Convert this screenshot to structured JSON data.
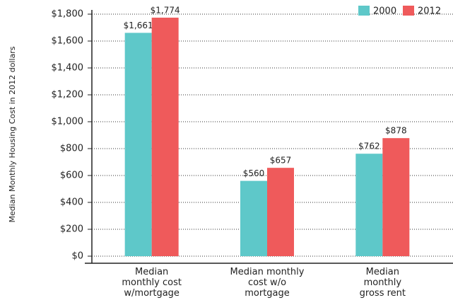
{
  "chart_data": {
    "type": "bar",
    "y_label": "Median Monthly Housing Cost in 2012 dollars",
    "categories": [
      "Median\nmonthly cost\nw/mortgage",
      "Median monthly\ncost w/o\nmortgage",
      "Median\nmonthly\ngross rent"
    ],
    "series": [
      {
        "name": "2000",
        "color": "#5ec8c9",
        "values": [
          1661,
          560,
          762
        ],
        "value_labels": [
          "$1,661",
          "$560",
          "$762"
        ]
      },
      {
        "name": "2012",
        "color": "#ef5a5b",
        "values": [
          1774,
          657,
          878
        ],
        "value_labels": [
          "$1,774",
          "$657",
          "$878"
        ]
      }
    ],
    "ylim": [
      0,
      1800
    ],
    "yticks": [
      {
        "value": 0,
        "label": "$0"
      },
      {
        "value": 200,
        "label": "$200"
      },
      {
        "value": 400,
        "label": "$400"
      },
      {
        "value": 600,
        "label": "$600"
      },
      {
        "value": 800,
        "label": "$800"
      },
      {
        "value": 1000,
        "label": "$1,000"
      },
      {
        "value": 1200,
        "label": "$1,200"
      },
      {
        "value": 1400,
        "label": "$1,400"
      },
      {
        "value": 1600,
        "label": "$1,600"
      },
      {
        "value": 1800,
        "label": "$1,800"
      }
    ],
    "grid": true,
    "legend": "top-right"
  }
}
